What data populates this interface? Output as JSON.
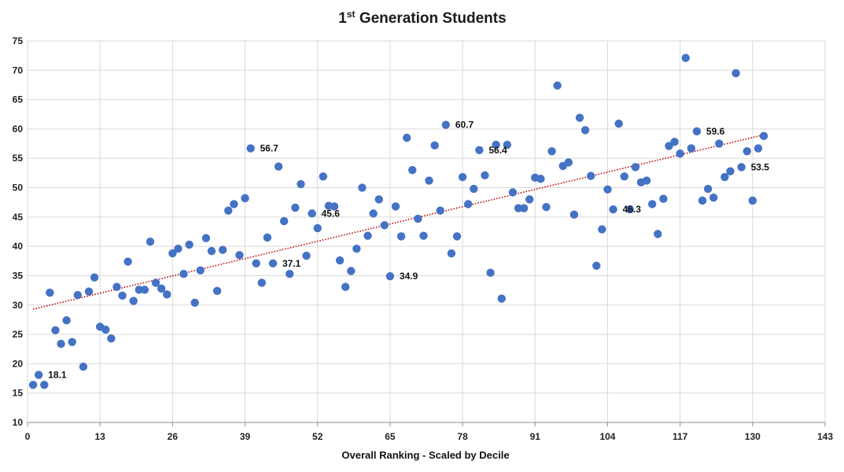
{
  "chart_data": {
    "type": "scatter",
    "title": {
      "main": "1",
      "superscript": "st",
      "rest": " Generation Students"
    },
    "xlabel": "Overall Ranking  - Scaled by Decile",
    "ylabel": "",
    "xlim": [
      0,
      143
    ],
    "ylim": [
      10,
      75
    ],
    "xticks": [
      0,
      13,
      26,
      39,
      52,
      65,
      78,
      91,
      104,
      117,
      130,
      143
    ],
    "yticks": [
      10,
      15,
      20,
      25,
      30,
      35,
      40,
      45,
      50,
      55,
      60,
      65,
      70,
      75
    ],
    "grid": true,
    "colors": {
      "points": "#4472c4",
      "trendline": "#c00000",
      "grid": "#d9d9d9"
    },
    "series": [
      {
        "name": "1st Generation Students",
        "x": [
          1,
          2,
          3,
          4,
          5,
          6,
          7,
          8,
          9,
          10,
          11,
          12,
          13,
          14,
          15,
          16,
          17,
          18,
          19,
          20,
          21,
          22,
          23,
          24,
          25,
          26,
          27,
          28,
          29,
          30,
          31,
          32,
          33,
          34,
          35,
          36,
          37,
          38,
          39,
          40,
          41,
          42,
          43,
          44,
          45,
          46,
          47,
          48,
          49,
          50,
          51,
          52,
          53,
          54,
          55,
          56,
          57,
          58,
          59,
          60,
          61,
          62,
          63,
          64,
          65,
          66,
          67,
          68,
          69,
          70,
          71,
          72,
          73,
          74,
          75,
          76,
          77,
          78,
          79,
          80,
          81,
          82,
          83,
          84,
          85,
          86,
          87,
          88,
          89,
          90,
          91,
          92,
          93,
          94,
          95,
          96,
          97,
          98,
          99,
          100,
          101,
          102,
          103,
          104,
          105,
          106,
          107,
          108,
          109,
          110,
          111,
          112,
          113,
          114,
          115,
          116,
          117,
          118,
          119,
          120,
          121,
          122,
          123,
          124,
          125,
          126,
          127,
          128,
          129,
          130,
          131,
          132
        ],
        "y": [
          16.4,
          18.1,
          16.4,
          32.1,
          25.7,
          23.4,
          27.4,
          23.7,
          31.7,
          19.5,
          32.3,
          34.7,
          26.3,
          25.8,
          24.3,
          33.1,
          31.6,
          37.4,
          30.7,
          32.6,
          32.6,
          40.8,
          33.8,
          32.8,
          31.8,
          38.8,
          39.6,
          35.3,
          40.3,
          30.4,
          35.9,
          41.4,
          39.2,
          32.4,
          39.4,
          46.1,
          47.2,
          38.5,
          48.2,
          56.7,
          37.1,
          33.8,
          41.5,
          37.1,
          53.6,
          44.3,
          35.3,
          46.6,
          50.6,
          38.4,
          45.6,
          43.1,
          51.9,
          46.9,
          46.8,
          37.6,
          33.1,
          35.8,
          39.6,
          50.0,
          41.8,
          45.6,
          48.0,
          43.6,
          34.9,
          46.8,
          41.7,
          58.5,
          53.0,
          44.7,
          41.8,
          51.2,
          57.2,
          46.1,
          60.7,
          38.8,
          41.7,
          51.8,
          47.2,
          49.8,
          56.4,
          52.1,
          35.5,
          57.3,
          31.1,
          57.3,
          49.2,
          46.5,
          46.5,
          48.0,
          51.7,
          51.5,
          46.7,
          56.2,
          67.4,
          53.7,
          54.3,
          45.4,
          61.9,
          59.8,
          52.0,
          36.7,
          42.9,
          49.7,
          46.3,
          60.9,
          51.9,
          46.3,
          53.5,
          50.9,
          51.2,
          47.2,
          42.1,
          48.1,
          57.1,
          57.8,
          55.8,
          72.1,
          56.7,
          59.6,
          47.8,
          49.8,
          48.3,
          57.5,
          51.8,
          52.8,
          69.5,
          53.5,
          56.2,
          47.8,
          56.7,
          58.8
        ]
      }
    ],
    "trendline": {
      "type": "linear",
      "x": [
        1,
        132
      ],
      "y": [
        29.3,
        59.0
      ]
    },
    "annotations": [
      {
        "x": 2,
        "y": 18.1,
        "text": "18.1"
      },
      {
        "x": 40,
        "y": 56.7,
        "text": "56.7"
      },
      {
        "x": 44,
        "y": 37.1,
        "text": "37.1"
      },
      {
        "x": 51,
        "y": 45.6,
        "text": "45.6"
      },
      {
        "x": 65,
        "y": 34.9,
        "text": "34.9"
      },
      {
        "x": 75,
        "y": 60.7,
        "text": "60.7"
      },
      {
        "x": 81,
        "y": 56.4,
        "text": "56.4"
      },
      {
        "x": 105,
        "y": 46.3,
        "text": "46.3"
      },
      {
        "x": 120,
        "y": 59.6,
        "text": "59.6"
      },
      {
        "x": 128,
        "y": 53.5,
        "text": "53.5"
      }
    ]
  }
}
